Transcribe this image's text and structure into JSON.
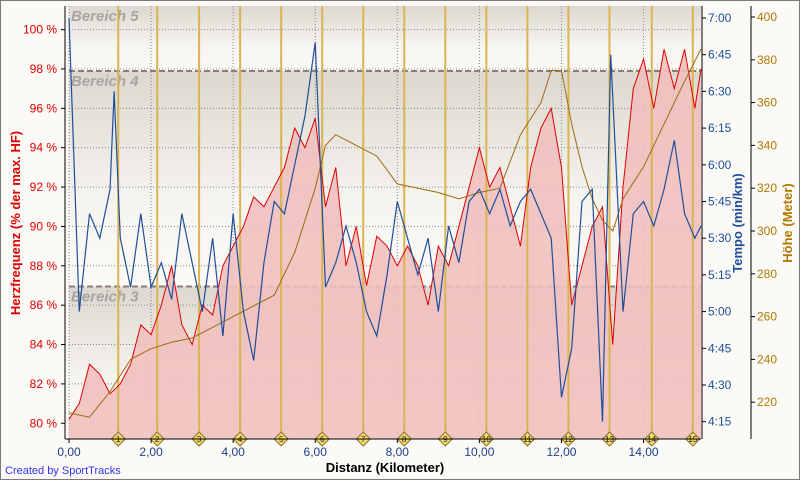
{
  "credit": "Created by SportTracks",
  "chart_data": {
    "type": "line",
    "xlabel": "Distanz (Kilometer)",
    "xlim": [
      0,
      15.4
    ],
    "xticks": [
      "0,00",
      "2,00",
      "4,00",
      "6,00",
      "8,00",
      "10,00",
      "12,00",
      "14,00"
    ],
    "y_left": {
      "label": "Herzfrequenz (% der max. HF)",
      "lim": [
        79.2,
        101.2
      ],
      "ticks": [
        "80 %",
        "82 %",
        "84 %",
        "86 %",
        "88 %",
        "90 %",
        "92 %",
        "94 %",
        "96 %",
        "98 %",
        "100 %"
      ],
      "color": "#dd0000"
    },
    "y_tempo": {
      "label": "Tempo (min/km)",
      "ticks": [
        "4:15",
        "4:30",
        "4:45",
        "5:00",
        "5:15",
        "5:30",
        "5:45",
        "6:00",
        "6:15",
        "6:30",
        "6:45",
        "7:00"
      ],
      "color": "#1f4f9a"
    },
    "y_height": {
      "label": "Höhe (Meter)",
      "ticks": [
        "220",
        "240",
        "260",
        "280",
        "300",
        "320",
        "340",
        "360",
        "380",
        "400"
      ],
      "color": "#b07800"
    },
    "zones": [
      {
        "name": "Bereich 5",
        "from": 97.9,
        "to": 101.2
      },
      {
        "name": "Bereich 4",
        "from": 86.95,
        "to": 97.9
      },
      {
        "name": "Bereich 3",
        "from": 79.2,
        "to": 86.95
      }
    ],
    "laps": [
      {
        "label": "1",
        "km": 1.2
      },
      {
        "label": "2",
        "km": 2.15
      },
      {
        "label": "3",
        "km": 3.17
      },
      {
        "label": "4",
        "km": 4.17
      },
      {
        "label": "5",
        "km": 5.17
      },
      {
        "label": "6",
        "km": 6.17
      },
      {
        "label": "7",
        "km": 7.17
      },
      {
        "label": "8",
        "km": 8.17
      },
      {
        "label": "9",
        "km": 9.17
      },
      {
        "label": "10",
        "km": 10.17
      },
      {
        "label": "11",
        "km": 11.17
      },
      {
        "label": "12",
        "km": 12.17
      },
      {
        "label": "13",
        "km": 13.17
      },
      {
        "label": "14",
        "km": 14.2
      },
      {
        "label": "15",
        "km": 15.2
      }
    ],
    "series": [
      {
        "name": "Herzfrequenz",
        "color": "#dd0000",
        "fill": "#efc0be",
        "x": [
          0,
          0.25,
          0.5,
          0.75,
          1,
          1.25,
          1.5,
          1.75,
          2,
          2.25,
          2.5,
          2.75,
          3,
          3.25,
          3.5,
          3.75,
          4,
          4.25,
          4.5,
          4.75,
          5,
          5.25,
          5.5,
          5.75,
          6,
          6.25,
          6.5,
          6.75,
          7,
          7.25,
          7.5,
          7.75,
          8,
          8.25,
          8.5,
          8.75,
          9,
          9.25,
          9.5,
          9.75,
          10,
          10.25,
          10.5,
          10.75,
          11,
          11.25,
          11.5,
          11.75,
          12,
          12.25,
          12.5,
          12.75,
          13,
          13.25,
          13.5,
          13.75,
          14,
          14.25,
          14.5,
          14.75,
          15,
          15.25,
          15.4
        ],
        "y": [
          80.2,
          81,
          83,
          82.5,
          81.5,
          82,
          83,
          85,
          84.5,
          86,
          88,
          85,
          84,
          86,
          85.5,
          88,
          89,
          90,
          91.5,
          91,
          92,
          93,
          95,
          94,
          95.5,
          91,
          93,
          88,
          90,
          87,
          89.5,
          89,
          88,
          89,
          88,
          86,
          89,
          88,
          90,
          92,
          94,
          92,
          93,
          91,
          89,
          93,
          95,
          96,
          93,
          86,
          88,
          90,
          91,
          84,
          92,
          97,
          98.5,
          96,
          99,
          97,
          99,
          96,
          98
        ]
      },
      {
        "name": "Tempo",
        "color": "#1f4f9a",
        "x": [
          0,
          0.25,
          0.5,
          0.75,
          1,
          1.1,
          1.25,
          1.5,
          1.75,
          2,
          2.25,
          2.5,
          2.75,
          3,
          3.25,
          3.5,
          3.75,
          4,
          4.25,
          4.5,
          4.75,
          5,
          5.25,
          5.5,
          5.75,
          6,
          6.25,
          6.5,
          6.75,
          7,
          7.25,
          7.5,
          7.75,
          8,
          8.25,
          8.5,
          8.75,
          9,
          9.25,
          9.5,
          9.75,
          10,
          10.25,
          10.5,
          10.75,
          11,
          11.25,
          11.5,
          11.75,
          12,
          12.25,
          12.5,
          12.75,
          13,
          13.2,
          13.5,
          13.75,
          14,
          14.25,
          14.5,
          14.75,
          15,
          15.25,
          15.4
        ],
        "y": [
          "7:00",
          "5:00",
          "5:40",
          "5:30",
          "5:50",
          "6:30",
          "5:30",
          "5:10",
          "5:40",
          "5:10",
          "5:20",
          "5:05",
          "5:40",
          "5:20",
          "5:00",
          "5:30",
          "4:50",
          "5:40",
          "5:00",
          "4:40",
          "5:20",
          "5:45",
          "5:40",
          "6:00",
          "6:20",
          "6:50",
          "5:10",
          "5:20",
          "5:35",
          "5:20",
          "5:00",
          "4:50",
          "5:15",
          "5:45",
          "5:30",
          "5:15",
          "5:30",
          "5:00",
          "5:35",
          "5:20",
          "5:45",
          "5:50",
          "5:40",
          "5:50",
          "5:35",
          "5:45",
          "5:50",
          "5:40",
          "5:30",
          "4:25",
          "4:45",
          "5:45",
          "5:50",
          "4:15",
          "6:45",
          "5:00",
          "5:40",
          "5:45",
          "5:35",
          "5:50",
          "6:10",
          "5:40",
          "5:30",
          "5:35"
        ]
      },
      {
        "name": "Höhe",
        "color": "#a06a10",
        "x": [
          0,
          0.5,
          1,
          1.5,
          2,
          2.5,
          3,
          3.5,
          4,
          4.5,
          5,
          5.5,
          6,
          6.25,
          6.5,
          7,
          7.5,
          8,
          8.5,
          9,
          9.5,
          10,
          10.5,
          11,
          11.5,
          11.75,
          12,
          12.25,
          12.5,
          12.75,
          13,
          13.25,
          13.5,
          14,
          14.5,
          15,
          15.4
        ],
        "y": [
          215,
          213,
          225,
          240,
          245,
          248,
          250,
          255,
          260,
          265,
          270,
          290,
          320,
          340,
          345,
          340,
          335,
          322,
          320,
          318,
          315,
          318,
          320,
          345,
          360,
          375,
          375,
          350,
          330,
          315,
          305,
          300,
          315,
          330,
          350,
          370,
          385
        ]
      }
    ]
  }
}
